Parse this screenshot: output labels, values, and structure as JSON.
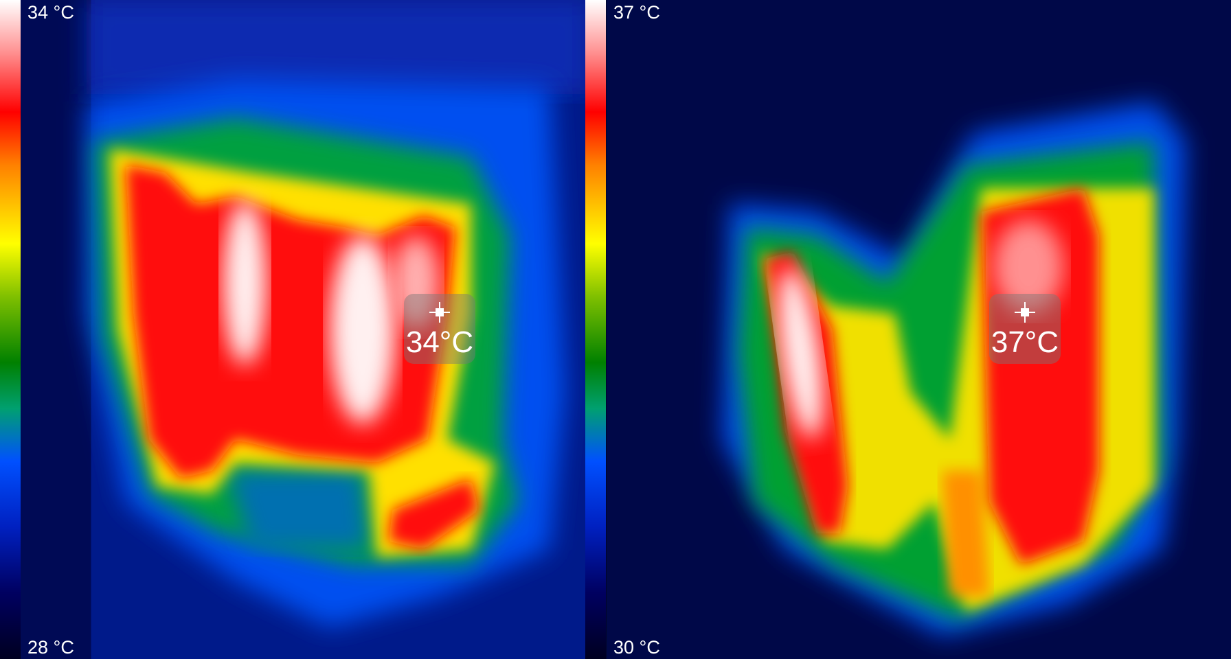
{
  "left_image": {
    "scale_max": "34 °C",
    "scale_min": "28 °C",
    "spot_temperature": "34°C"
  },
  "right_image": {
    "scale_max": "37 °C",
    "scale_min": "30 °C",
    "spot_temperature": "37°C"
  },
  "palette": [
    "#ffffff",
    "#ff0000",
    "#ffff00",
    "#008000",
    "#0050ff",
    "#000040"
  ]
}
